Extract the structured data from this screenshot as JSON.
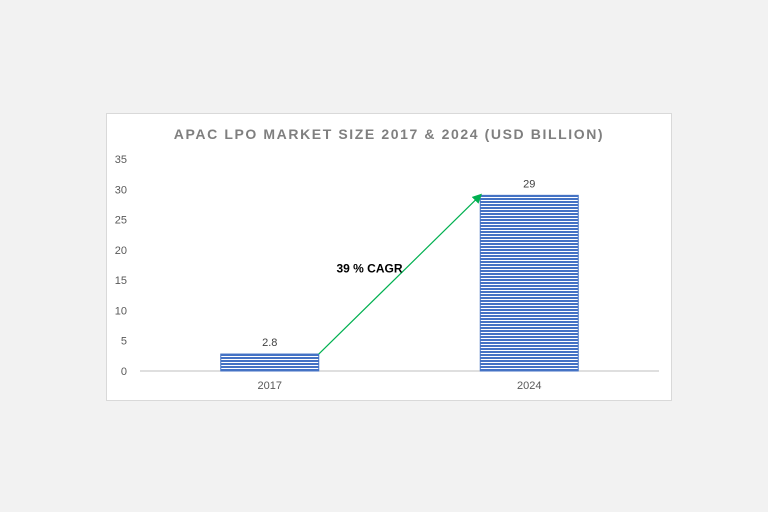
{
  "chart_data": {
    "type": "bar",
    "title": "APAC LPO MARKET SIZE 2017 & 2024 (USD BILLION)",
    "categories": [
      "2017",
      "2024"
    ],
    "values": [
      2.8,
      29
    ],
    "data_labels": [
      "2.8",
      "29"
    ],
    "ylim": [
      0,
      35
    ],
    "yticks": [
      0,
      5,
      10,
      15,
      20,
      25,
      30,
      35
    ],
    "xlabel": "",
    "ylabel": "",
    "grid": false,
    "legend": "none",
    "annotation": {
      "text": "39 % CAGR",
      "arrow_from": {
        "x": "2017",
        "y": 2.8
      },
      "arrow_to": {
        "x": "2024",
        "y": 29
      }
    },
    "colors": {
      "bar": "#4472c4",
      "bar_stripe": "#ffffff",
      "arrow": "#00b050",
      "axis": "#bfbfbf"
    }
  }
}
